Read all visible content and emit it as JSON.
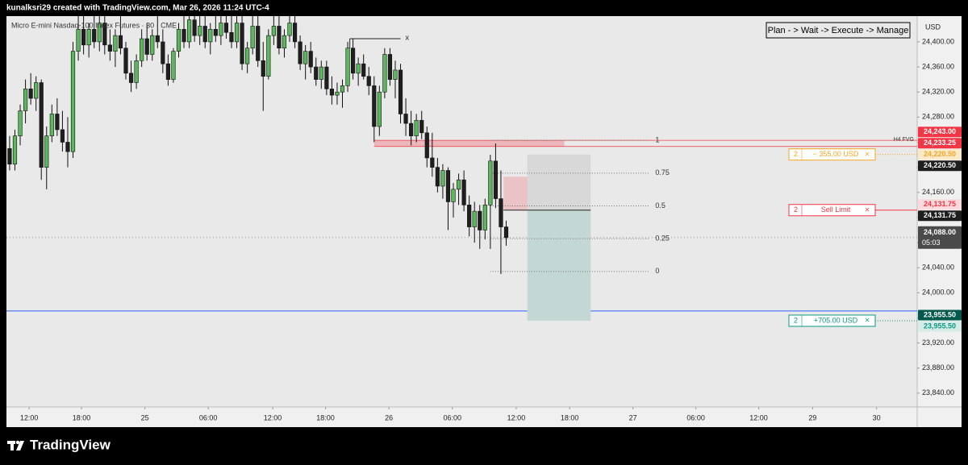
{
  "header": {
    "credit": "kunalksri29 created with TradingView.com, Mar 26, 2026 11:24 UTC-4",
    "symbol": "Micro E-mini Nasdaq-100 Index Futures · 30 · CME",
    "note": "Plan - > Wait -> Execute -> Manage"
  },
  "chart_data": {
    "type": "candlestick",
    "currency": "USD",
    "open": [
      24230,
      24205,
      24250,
      24290,
      24325,
      24310,
      24335,
      24200,
      24250,
      24285,
      24260,
      24240,
      24225,
      24385,
      24420,
      24395,
      24420,
      24400,
      24430,
      24395,
      24385,
      24410,
      24390,
      24350,
      24335,
      24370,
      24405,
      24380,
      24410,
      24400,
      24365,
      24340,
      24385,
      24420,
      24400,
      24435,
      24410,
      24425,
      24400,
      24420,
      24410,
      24430,
      24415,
      24400,
      24430,
      24365,
      24390,
      24425,
      24370,
      24345,
      24410,
      24425,
      24390,
      24410,
      24430,
      24400,
      24365,
      24385,
      24360,
      24340,
      24360,
      24325,
      24315,
      24320,
      24330,
      24390,
      24350,
      24365,
      24345,
      24330,
      24265,
      24320,
      24380,
      24340,
      24355,
      24285,
      24270,
      24250,
      24275,
      24255,
      24215,
      24200,
      24170,
      24195,
      24145,
      24165,
      24180,
      24140,
      24105,
      24130,
      24100,
      24140,
      24210,
      24150,
      24105
    ],
    "high": [
      24250,
      24260,
      24300,
      24340,
      24350,
      24345,
      24340,
      24265,
      24300,
      24310,
      24290,
      24280,
      24400,
      24441,
      24441,
      24430,
      24441,
      24441,
      24441,
      24420,
      24420,
      24441,
      24400,
      24370,
      24380,
      24420,
      24430,
      24420,
      24441,
      24420,
      24380,
      24390,
      24430,
      24441,
      24441,
      24441,
      24441,
      24441,
      24430,
      24441,
      24441,
      24441,
      24441,
      24441,
      24441,
      24400,
      24441,
      24441,
      24400,
      24420,
      24441,
      24441,
      24420,
      24441,
      24441,
      24410,
      24395,
      24400,
      24375,
      24370,
      24370,
      24345,
      24335,
      24340,
      24400,
      24405,
      24375,
      24380,
      24360,
      24345,
      24330,
      24390,
      24390,
      24370,
      24365,
      24310,
      24290,
      24285,
      24290,
      24265,
      24255,
      24215,
      24205,
      24200,
      24175,
      24190,
      24195,
      24155,
      24145,
      24140,
      24150,
      24220,
      24238,
      24195,
      24115
    ],
    "low": [
      24195,
      24195,
      24235,
      24270,
      24300,
      24290,
      24180,
      24165,
      24240,
      24250,
      24225,
      24200,
      24215,
      24370,
      24380,
      24375,
      24390,
      24385,
      24380,
      24370,
      24360,
      24380,
      24340,
      24320,
      24325,
      24360,
      24370,
      24370,
      24390,
      24350,
      24330,
      24335,
      24375,
      24390,
      24390,
      24400,
      24395,
      24390,
      24380,
      24400,
      24395,
      24405,
      24390,
      24390,
      24355,
      24350,
      24380,
      24360,
      24290,
      24340,
      24395,
      24380,
      24375,
      24400,
      24390,
      24355,
      24340,
      24350,
      24330,
      24325,
      24315,
      24300,
      24300,
      24295,
      24320,
      24340,
      24330,
      24340,
      24315,
      24240,
      24250,
      24310,
      24330,
      24310,
      24270,
      24250,
      24235,
      24240,
      24245,
      24200,
      24185,
      24160,
      24150,
      24100,
      24120,
      24140,
      24130,
      24090,
      24080,
      24070,
      24085,
      24070,
      24135,
      24030,
      24075
    ],
    "close": [
      24205,
      24250,
      24290,
      24325,
      24310,
      24335,
      24200,
      24250,
      24285,
      24260,
      24240,
      24225,
      24385,
      24420,
      24395,
      24420,
      24400,
      24430,
      24395,
      24385,
      24410,
      24390,
      24350,
      24335,
      24370,
      24405,
      24380,
      24410,
      24400,
      24365,
      24340,
      24385,
      24420,
      24400,
      24435,
      24410,
      24425,
      24400,
      24420,
      24410,
      24430,
      24415,
      24400,
      24430,
      24365,
      24390,
      24425,
      24370,
      24345,
      24410,
      24425,
      24390,
      24410,
      24430,
      24400,
      24365,
      24385,
      24360,
      24340,
      24360,
      24325,
      24315,
      24320,
      24330,
      24390,
      24350,
      24365,
      24345,
      24330,
      24265,
      24320,
      24380,
      24340,
      24355,
      24285,
      24270,
      24250,
      24275,
      24255,
      24215,
      24200,
      24170,
      24195,
      24145,
      24165,
      24180,
      24140,
      24105,
      24130,
      24100,
      24140,
      24210,
      24150,
      24105,
      24088
    ],
    "up_color": "#5cb85c",
    "down_color": "#1f1f1f",
    "xlim": [
      -0.6,
      171.8
    ],
    "xticks": [
      {
        "value": 3.7,
        "label": "12:00"
      },
      {
        "value": 13.6,
        "label": "18:00"
      },
      {
        "value": 25.6,
        "label": "25"
      },
      {
        "value": 37.6,
        "label": "06:00"
      },
      {
        "value": 49.8,
        "label": "12:00"
      },
      {
        "value": 59.8,
        "label": "18:00"
      },
      {
        "value": 71.8,
        "label": "26"
      },
      {
        "value": 83.8,
        "label": "06:00"
      },
      {
        "value": 95.9,
        "label": "12:00"
      },
      {
        "value": 106,
        "label": "18:00"
      },
      {
        "value": 118,
        "label": "27"
      },
      {
        "value": 129.9,
        "label": "06:00"
      },
      {
        "value": 141.8,
        "label": "12:00"
      },
      {
        "value": 152,
        "label": "29"
      },
      {
        "value": 164.1,
        "label": "30"
      }
    ],
    "ylim": [
      23818,
      24441
    ],
    "yticks": [
      {
        "value": 24400,
        "label": "24,400.00"
      },
      {
        "value": 24360,
        "label": "24,360.00"
      },
      {
        "value": 24320,
        "label": "24,320.00"
      },
      {
        "value": 24280,
        "label": "24,280.00"
      },
      {
        "value": 24240,
        "label": "24,240.00"
      },
      {
        "value": 24200,
        "label": "24,200.00"
      },
      {
        "value": 24160,
        "label": "24,160.00"
      },
      {
        "value": 24120,
        "label": "24,120.00"
      },
      {
        "value": 24080,
        "label": "24,080.00"
      },
      {
        "value": 24040,
        "label": "24,040.00"
      },
      {
        "value": 24000,
        "label": "24,000.00"
      },
      {
        "value": 23960,
        "label": "23,960.00"
      },
      {
        "value": 23920,
        "label": "23,920.00"
      },
      {
        "value": 23880,
        "label": "23,880.00"
      },
      {
        "value": 23840,
        "label": "23,840.00"
      }
    ],
    "fvg": {
      "label": "H4 FVG",
      "top": 24243,
      "bottom": 24233.25,
      "x": [
        69,
        105
      ],
      "color": "#f23645"
    },
    "fib": {
      "from": 24034,
      "to": 24243,
      "x": [
        91,
        121
      ],
      "levels": [
        1,
        0.75,
        0.5,
        0.25,
        0
      ]
    },
    "position": {
      "entry": 24131.75,
      "stop": 24220.5,
      "target": 23955.5,
      "x": [
        98,
        110
      ]
    },
    "entry_zone": {
      "top": 24185,
      "x": [
        93.5,
        98
      ]
    },
    "measure": {
      "price": 24405,
      "x": [
        64.4,
        74
      ],
      "label": "x"
    },
    "hline": {
      "price": 23971,
      "color": "#2962ff"
    },
    "order_close": "×",
    "orders": [
      {
        "qty": 2,
        "text": "− 355.00 USD",
        "price": 24220.5,
        "color": "#f5a623"
      },
      {
        "qty": 2,
        "text": "Sell Limit",
        "price": 24131.75,
        "color": "#f23645"
      },
      {
        "qty": 2,
        "text": "+705.00 USD",
        "price": 23955.5,
        "color": "#089981"
      }
    ],
    "price_tags": [
      {
        "value": 24243,
        "label": "24,243.00",
        "bg": "#f23645",
        "fg": "#ffffff"
      },
      {
        "value": 24233.25,
        "label": "24,233.25",
        "bg": "#f23645",
        "fg": "#ffffff"
      },
      {
        "value": 24220.5,
        "label": "24,220.50",
        "bg": "#fde9c8",
        "fg": "#f5a623"
      },
      {
        "value": 24220.5,
        "label": "24,220.50",
        "bg": "#1e1e1e",
        "fg": "#ffffff"
      },
      {
        "value": 24131.75,
        "label": "24,131.75",
        "bg": "#fbd9dc",
        "fg": "#f23645"
      },
      {
        "value": 24131.75,
        "label": "24,131.75",
        "bg": "#1e1e1e",
        "fg": "#ffffff"
      },
      {
        "value": 24088,
        "label": "24,088.00",
        "bg": "#4a4a4a",
        "fg": "#ffffff"
      },
      {
        "value": 23955.5,
        "label": "23,955.50",
        "bg": "#00594c",
        "fg": "#ffffff"
      },
      {
        "value": 23955.5,
        "label": "23,955.50",
        "bg": "#d6ece8",
        "fg": "#089981"
      }
    ],
    "countdown": "05:03"
  },
  "footer": {
    "brand": "TradingView"
  }
}
